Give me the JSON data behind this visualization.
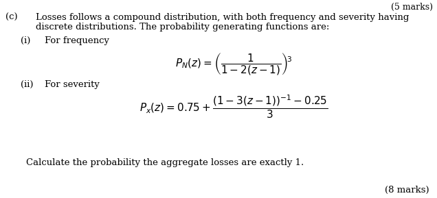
{
  "background_color": "#ffffff",
  "text_color": "#000000",
  "part_label": "(c)",
  "intro_line1": "Losses follows a compound distribution, with both frequency and severity having",
  "intro_line2": "discrete distributions. The probability generating functions are:",
  "sub_i_label": "(i)",
  "sub_i_text": "For frequency",
  "sub_ii_label": "(ii)",
  "sub_ii_text": "For severity",
  "formula_N": "$P_N(z) = \\left(\\dfrac{1}{1-2(z-1)}\\right)^{\\!3}$",
  "formula_X": "$P_x(z) = 0.75 + \\dfrac{\\left(1-3(z-1)\\right)^{-1}-0.25}{3}$",
  "footer_text": "Calculate the probability the aggregate losses are exactly 1.",
  "marks_text": "(8 marks)",
  "top_marks": "(5 marks)",
  "font_size_body": 9.5,
  "font_size_formula": 11
}
